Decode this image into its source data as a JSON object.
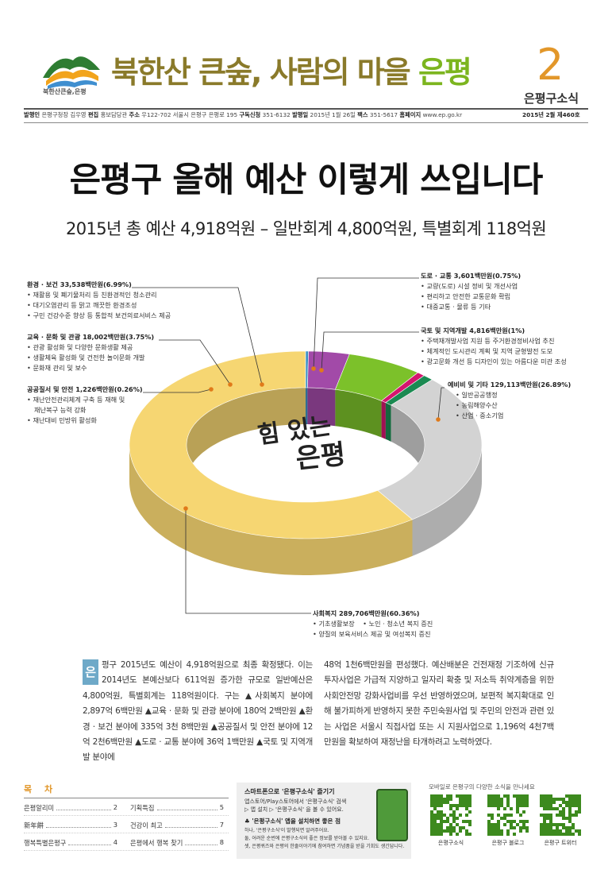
{
  "header": {
    "slogan_main": "북한산 큰숲, 사람의 마을 ",
    "slogan_accent": "은평",
    "logo_caption": "북한산큰숲,은평",
    "issue_number": "2",
    "issue_name": "은평구소식",
    "meta": [
      {
        "k": "발행인",
        "v": "은평구청장 김우영"
      },
      {
        "k": "편집",
        "v": "홍보담당관"
      },
      {
        "k": "주소",
        "v": "우122-702 서울시 은평구 은평로 195"
      },
      {
        "k": "구독신청",
        "v": "351-6132"
      },
      {
        "k": "발행일",
        "v": "2015년 1월 26일"
      },
      {
        "k": "팩스",
        "v": "351-5617"
      },
      {
        "k": "홈페이지",
        "v": "www.ep.go.kr"
      }
    ],
    "issue_date": "2015년 2월 제460호",
    "colors": {
      "slogan": "#8a7a2a",
      "accent": "#7cb51f",
      "issue": "#e2972a"
    }
  },
  "headline": "은평구 올해 예산 이렇게 쓰입니다",
  "subheadline": "2015년 총 예산 4,918억원 – 일반회계 4,800억원, 특별회계 118억원",
  "chart_data": {
    "type": "pie",
    "center_text_1": "힘 있는",
    "center_text_2": "은평",
    "slices": [
      {
        "name": "사회복지",
        "value": 289706,
        "pct": "60.36%",
        "color": "#f6d672"
      },
      {
        "name": "공공질서 및 안전",
        "value": 1226,
        "pct": "0.26%",
        "color": "#3d93c4"
      },
      {
        "name": "교육 · 문화 및 관광",
        "value": 18002,
        "pct": "3.75%",
        "color": "#a24aa8"
      },
      {
        "name": "환경 · 보건",
        "value": 33538,
        "pct": "6.99%",
        "color": "#7cc12a"
      },
      {
        "name": "도로 · 교통",
        "value": 3601,
        "pct": "0.75%",
        "color": "#d4166e"
      },
      {
        "name": "국토 및 지역개발",
        "value": 4816,
        "pct": "1%",
        "color": "#1b8a52"
      },
      {
        "name": "예비비 및 기타",
        "value": 129113,
        "pct": "26.89%",
        "color": "#d3d3d3"
      }
    ],
    "labels": [
      {
        "title": "환경 · 보건  33,538백만원(6.99%)",
        "items": [
          "재활용 및 폐기물처리 등 친환경적인 청소관리",
          "대기오염관리 등 맑고 깨끗한 환경조성",
          "구민 건강수준 향상 등 통합적 보건의료서비스 제공"
        ]
      },
      {
        "title": "교육 · 문화 및 관광  18,002백만원(3.75%)",
        "items": [
          "관광 활성화 및 다양한 문화생활 제공",
          "생활체육 활성화 및 건전한 놀이문화 개발",
          "문화재 관리 및 보수"
        ]
      },
      {
        "title": "공공질서 및 안전   1,226백만원(0.26%)",
        "items": [
          "재난안전관리체계 구축 등 재해 및",
          "재난대비 민방위 활성화"
        ],
        "extra": "재난복구 능력 강화"
      },
      {
        "title": "도로 · 교통  3,601백만원(0.75%)",
        "items": [
          "교량(도로) 시설 정비 및 개선사업",
          "편리하고 안전한 교통문화 확립",
          "대중교통 · 물류 등 기타"
        ]
      },
      {
        "title": "국토 및 지역개발  4,816백만원(1%)",
        "items": [
          "주택재개발사업 지원 등 주거환경정비사업 추진",
          "체계적인 도시관리 계획 및 지역 균형발전 도모",
          "광고문화 개선 등 디자인이 있는 아름다운 미관 조성"
        ]
      },
      {
        "title": "예비비 및 기타  129,113백만원(26.89%)",
        "items": [
          "일반공공행정",
          "농림해양수산",
          "산업 · 중소기업"
        ]
      },
      {
        "title": "사회복지  289,706백만원(60.36%)",
        "items": [
          "기초생활보장",
          "양질의 보육서비스 제공 및 여성복지 증진"
        ],
        "item_b": "노인 · 청소년 복지 증진"
      }
    ]
  },
  "body": {
    "dropcap": "은",
    "col1": "평구 2015년도 예산이 4,918억원으로 최종 확정됐다. 이는 2014년도 본예산보다 611억원 증가한 규모로 일반예산은 4,800억원, 특별회계는 118억원이다. 구는 ▲사회복지 분야에 2,897억 6백만원 ▲교육 · 문화 및 관광 분야에 180억 2백만원 ▲환경 · 보건 분야에 335억 3천 8백만원 ▲공공질서 및 안전 분야에 12억 2천6백만원 ▲도로 · 교통 분야에 36억 1백만원 ▲국토 및 지역개발 분야에",
    "col2": "48억 1천6백만원을 편성했다. 예산배분은 건전재정 기조하에 신규투자사업은 가급적 지양하고 일자리 확충 및 저소득 취약계층을 위한 사회안전망 강화사업비를 우선 반영하였으며, 보편적 복지확대로 인해 불가피하게 반영하지 못한 주민숙원사업 및 주민의 안전과 관련 있는 사업은 서울시 직접사업 또는 시 지원사업으로 1,196억 4천7백만원을 확보하여 재정난을 타개하려고 노력하였다."
  },
  "toc": {
    "heading": "목 차",
    "rows": [
      [
        {
          "t": "은평알리미",
          "p": "2"
        },
        {
          "t": "기획특집",
          "p": "5"
        }
      ],
      [
        {
          "t": "新年餠",
          "p": "3"
        },
        {
          "t": "건강이 최고",
          "p": "7"
        }
      ],
      [
        {
          "t": "행복특별은평구",
          "p": "4"
        },
        {
          "t": "은평에서 행복 찾기",
          "p": "8"
        }
      ]
    ]
  },
  "app": {
    "title": "스마트폰으로 '은평구소식' 즐기기",
    "l1": "앱스토어/Play스토어에서 '은평구소식' 검색",
    "l2": "▷ 앱 설치 ▷ '은평구소식' 을 볼 수 있어요.",
    "title2": "♣ '은평구소식' 앱을 설치하면 좋은 점",
    "l3": "하나, '은평구소식'이 발행되면 알려주어요.",
    "l4": "둘, 어려운 순번에 은평구소식의 좋은 정보를 받아볼 수 있지요.",
    "l5": "셋, 은평퀴즈와 은평의 한줄이야기에 참여하면 기념품을 받을 기회도 생긴답니다."
  },
  "sns": {
    "caption": "모바일로 은평구의 다양한 소식을 만나세요",
    "qr_labels": [
      "은평구소식",
      "은평구 블로그",
      "은평구 트위터"
    ]
  }
}
